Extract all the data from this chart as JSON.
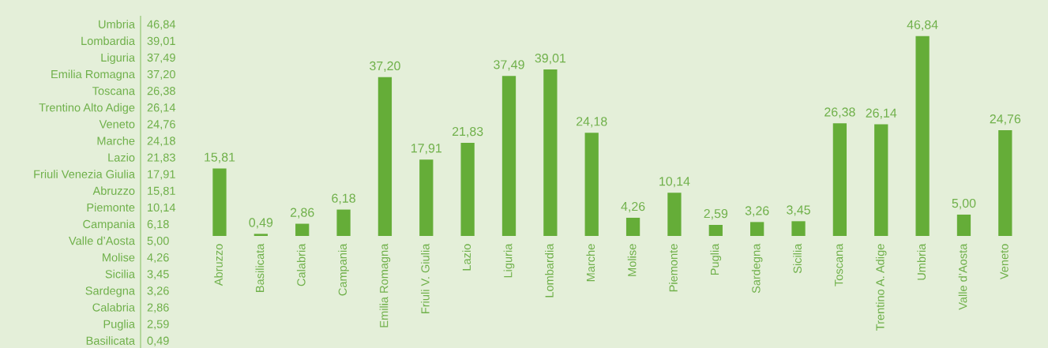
{
  "chart_data": [
    {
      "type": "other",
      "categories": [
        "Umbria",
        "Lombardia",
        "Liguria",
        "Emilia Romagna",
        "Toscana",
        "Trentino Alto Adige",
        "Veneto",
        "Marche",
        "Lazio",
        "Friuli Venezia Giulia",
        "Abruzzo",
        "Piemonte",
        "Campania",
        "Valle d’Aosta",
        "Molise",
        "Sicilia",
        "Sardegna",
        "Calabria",
        "Puglia",
        "Basilicata"
      ],
      "values": [
        46.84,
        39.01,
        37.49,
        37.2,
        26.38,
        26.14,
        24.76,
        24.18,
        21.83,
        17.91,
        15.81,
        10.14,
        6.18,
        5.0,
        4.26,
        3.45,
        3.26,
        2.86,
        2.59,
        0.49
      ],
      "value_labels": [
        "46,84",
        "39,01",
        "37,49",
        "37,20",
        "26,38",
        "26,14",
        "24,76",
        "24,18",
        "21,83",
        "17,91",
        "15,81",
        "10,14",
        "6,18",
        "5,00",
        "4,26",
        "3,45",
        "3,26",
        "2,86",
        "2,59",
        "0,49"
      ]
    },
    {
      "type": "bar",
      "categories": [
        "Abruzzo",
        "Basilicata",
        "Calabria",
        "Campania",
        "Emilia Romagna",
        "Friuli V. Giulia",
        "Lazio",
        "Liguria",
        "Lombardia",
        "Marche",
        "Molise",
        "Piemonte",
        "Puglia",
        "Sardegna",
        "Sicilia",
        "Toscana",
        "Trentino A. Adige",
        "Umbria",
        "Valle d’Aosta",
        "Veneto"
      ],
      "values": [
        15.81,
        0.49,
        2.86,
        6.18,
        37.2,
        17.91,
        21.83,
        37.49,
        39.01,
        24.18,
        4.26,
        10.14,
        2.59,
        3.26,
        3.45,
        26.38,
        26.14,
        46.84,
        5.0,
        24.76
      ],
      "value_labels": [
        "15,81",
        "0,49",
        "2,86",
        "6,18",
        "37,20",
        "17,91",
        "21,83",
        "37,49",
        "39,01",
        "24,18",
        "4,26",
        "10,14",
        "2,59",
        "3,26",
        "3,45",
        "26,38",
        "26,14",
        "46,84",
        "5,00",
        "24,76"
      ],
      "color": "#65ad38"
    }
  ]
}
